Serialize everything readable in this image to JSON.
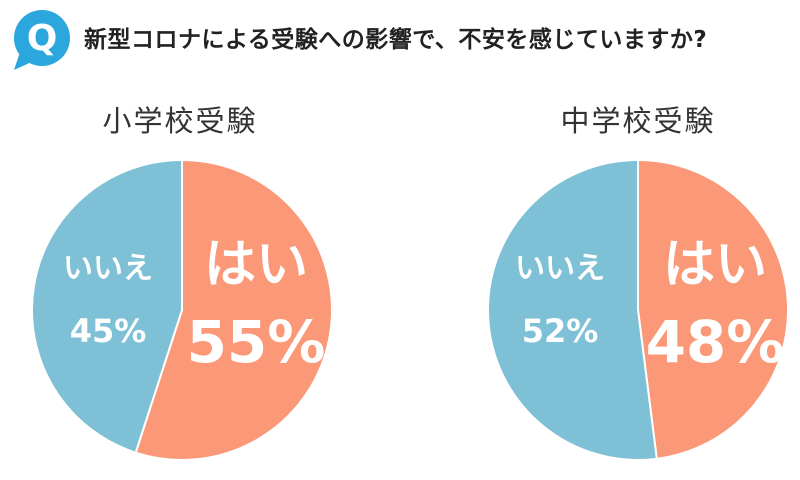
{
  "header": {
    "badge_letter": "Q",
    "question": "新型コロナによる受験への影響で、不安を感じていますか?"
  },
  "colors": {
    "yes": "#FA9877",
    "no": "#7EC0D6",
    "badge": "#2BA7DE"
  },
  "chart_data": [
    {
      "type": "pie",
      "title": "小学校受験",
      "slices": [
        {
          "label": "はい",
          "value": 55,
          "display": "55%"
        },
        {
          "label": "いいえ",
          "value": 45,
          "display": "45%"
        }
      ]
    },
    {
      "type": "pie",
      "title": "中学校受験",
      "slices": [
        {
          "label": "はい",
          "value": 48,
          "display": "48%"
        },
        {
          "label": "いいえ",
          "value": 52,
          "display": "52%"
        }
      ]
    }
  ]
}
